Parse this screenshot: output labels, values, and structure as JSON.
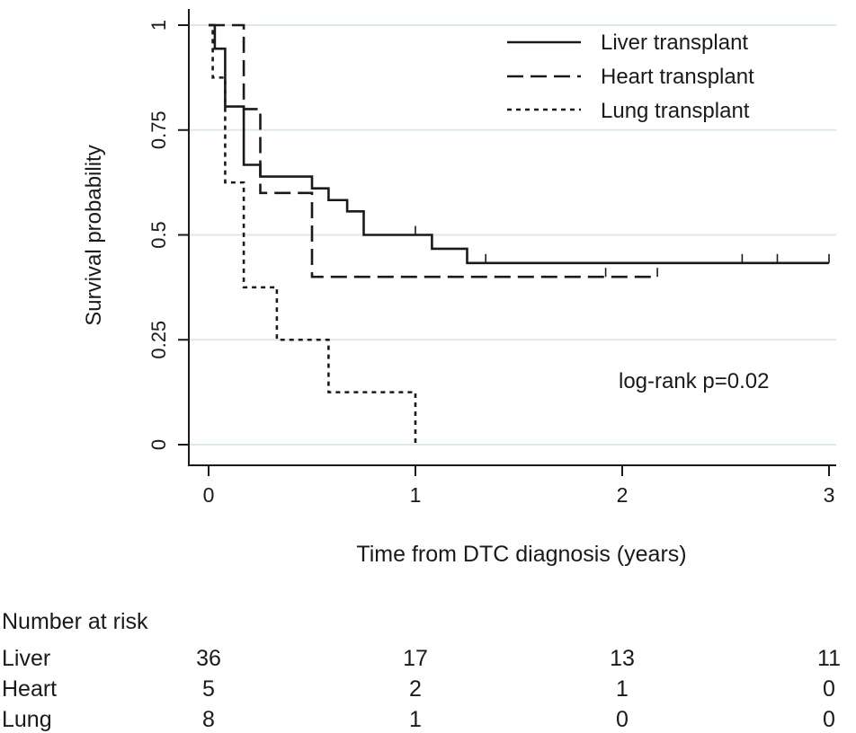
{
  "chart_data": {
    "type": "line",
    "step": true,
    "ylabel": "Survival probability",
    "xlabel": "Time from DTC diagnosis (years)",
    "xlim": [
      0,
      3
    ],
    "ylim": [
      0,
      1
    ],
    "x_ticks": [
      0,
      1,
      2,
      3
    ],
    "x_tick_labels": [
      "0",
      "1",
      "2",
      "3"
    ],
    "y_ticks": [
      0,
      0.25,
      0.5,
      0.75,
      1
    ],
    "y_tick_labels": [
      "0",
      "0.25",
      "0.5",
      "0.75",
      "1"
    ],
    "grid": "horizontal",
    "legend_position": "top-right",
    "annotation": "log-rank p=0.02",
    "series": [
      {
        "name": "Liver transplant",
        "style": "solid",
        "points": [
          [
            0,
            1
          ],
          [
            0.03,
            0.944
          ],
          [
            0.08,
            0.806
          ],
          [
            0.17,
            0.667
          ],
          [
            0.25,
            0.639
          ],
          [
            0.5,
            0.611
          ],
          [
            0.58,
            0.583
          ],
          [
            0.67,
            0.556
          ],
          [
            0.75,
            0.5
          ],
          [
            1.08,
            0.467
          ],
          [
            1.25,
            0.433
          ],
          [
            3.0,
            0.433
          ]
        ],
        "censored": [
          1.0,
          1.34,
          2.58,
          2.75,
          3.0
        ]
      },
      {
        "name": "Heart transplant",
        "style": "dashed",
        "points": [
          [
            0,
            1
          ],
          [
            0.17,
            0.8
          ],
          [
            0.25,
            0.6
          ],
          [
            0.5,
            0.4
          ],
          [
            2.17,
            0.4
          ]
        ],
        "censored": [
          1.92,
          2.17
        ]
      },
      {
        "name": "Lung transplant",
        "style": "dotted",
        "points": [
          [
            0,
            1
          ],
          [
            0.02,
            0.875
          ],
          [
            0.08,
            0.625
          ],
          [
            0.17,
            0.375
          ],
          [
            0.33,
            0.25
          ],
          [
            0.58,
            0.125
          ],
          [
            1.0,
            0.125
          ],
          [
            1.0,
            0
          ]
        ],
        "censored": []
      }
    ]
  },
  "risk_table": {
    "title": "Number at risk",
    "rows": [
      {
        "label": "Liver",
        "values": [
          "36",
          "17",
          "13",
          "11"
        ]
      },
      {
        "label": "Heart",
        "values": [
          "5",
          "2",
          "1",
          "0"
        ]
      },
      {
        "label": "Lung",
        "values": [
          "8",
          "1",
          "0",
          "0"
        ]
      }
    ]
  },
  "colors": {
    "line": "#1a1a1a",
    "grid": "#dde8e8",
    "background": "#ffffff"
  }
}
